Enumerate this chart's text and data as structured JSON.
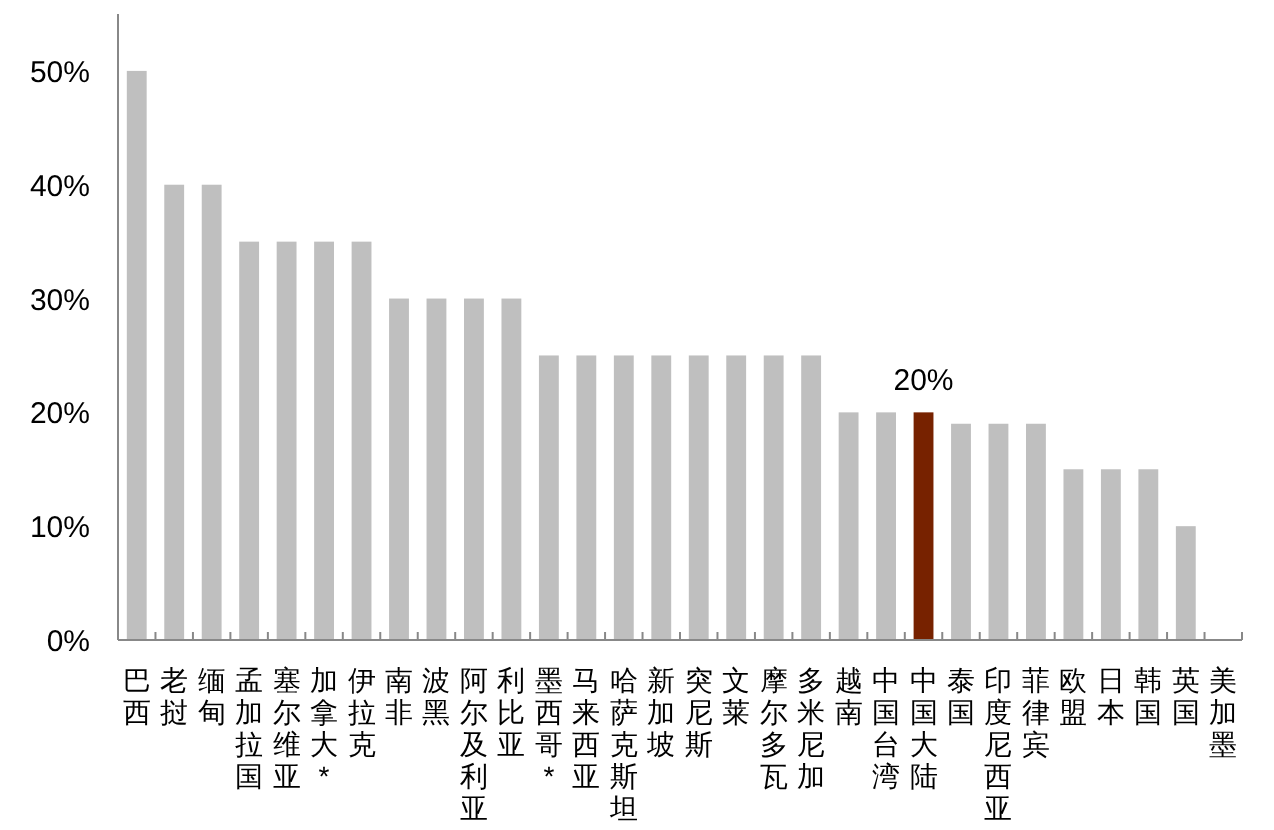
{
  "chart_data": {
    "type": "bar",
    "categories": [
      "巴西",
      "老挝",
      "缅甸",
      "孟加拉国",
      "塞尔维亚",
      "加拿大*",
      "伊拉克",
      "南非",
      "波黑",
      "阿尔及利亚",
      "利比亚",
      "墨西哥*",
      "马来西亚",
      "哈萨克斯坦",
      "新加坡",
      "突尼斯",
      "文莱",
      "摩尔多瓦",
      "多米尼加",
      "越南",
      "中国台湾",
      "中国大陆",
      "泰国",
      "印度尼西亚",
      "菲律宾",
      "欧盟",
      "日本",
      "韩国",
      "英国",
      "美加墨"
    ],
    "values": [
      50,
      40,
      40,
      35,
      35,
      35,
      35,
      30,
      30,
      30,
      30,
      25,
      25,
      25,
      25,
      25,
      25,
      25,
      25,
      20,
      20,
      20,
      19,
      19,
      19,
      15,
      15,
      15,
      10,
      null
    ],
    "colors": [
      "#bfbfbf",
      "#bfbfbf",
      "#bfbfbf",
      "#bfbfbf",
      "#bfbfbf",
      "#bfbfbf",
      "#bfbfbf",
      "#bfbfbf",
      "#bfbfbf",
      "#bfbfbf",
      "#bfbfbf",
      "#bfbfbf",
      "#bfbfbf",
      "#bfbfbf",
      "#bfbfbf",
      "#bfbfbf",
      "#bfbfbf",
      "#bfbfbf",
      "#bfbfbf",
      "#bfbfbf",
      "#bfbfbf",
      "#772200",
      "#bfbfbf",
      "#bfbfbf",
      "#bfbfbf",
      "#bfbfbf",
      "#bfbfbf",
      "#bfbfbf",
      "#bfbfbf",
      null
    ],
    "value_labels": [
      null,
      null,
      null,
      null,
      null,
      null,
      null,
      null,
      null,
      null,
      null,
      null,
      null,
      null,
      null,
      null,
      null,
      null,
      null,
      null,
      null,
      "20%",
      null,
      null,
      null,
      null,
      null,
      null,
      null,
      null
    ],
    "ylim": [
      0,
      55
    ],
    "yticks": [
      {
        "value": 0,
        "label": "0%"
      },
      {
        "value": 10,
        "label": "10%"
      },
      {
        "value": 20,
        "label": "20%"
      },
      {
        "value": 30,
        "label": "30%"
      },
      {
        "value": 40,
        "label": "40%"
      },
      {
        "value": 50,
        "label": "50%"
      }
    ]
  }
}
